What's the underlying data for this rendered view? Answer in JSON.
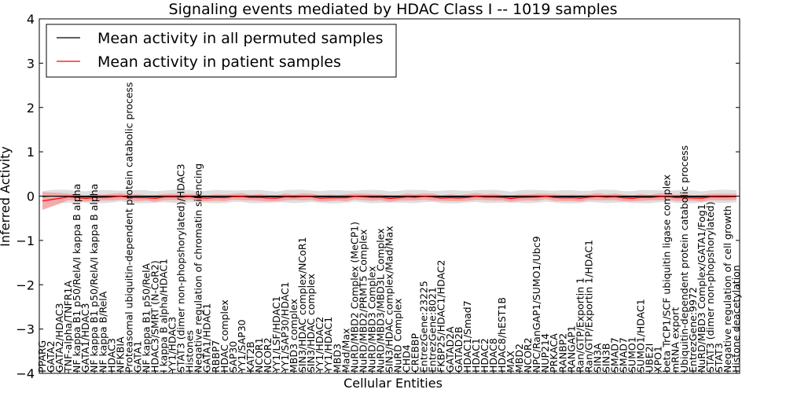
{
  "chart_data": {
    "type": "line",
    "title": "Signaling events mediated by HDAC Class I -- 1019 samples",
    "xlabel": "Cellular Entities",
    "ylabel": "Inferred Activity",
    "ylim": [
      -4,
      4
    ],
    "yticks": [
      "−4",
      "−3",
      "−2",
      "−1",
      "0",
      "1",
      "2",
      "3",
      "4"
    ],
    "legend_position": "upper-left",
    "series": [
      {
        "name": "Mean activity in all permuted samples",
        "color": "#000000",
        "level": -0.01
      },
      {
        "name": "Mean activity in patient samples",
        "color": "#ff0000",
        "level": -0.03
      }
    ],
    "band_colors": {
      "permuted": "#d9d9d9",
      "patient": "#f4a3a3"
    },
    "categories": [
      "PPARG",
      "GATA2",
      "GATA2/HDAC3",
      "TNF-alpha/TNFR1A",
      "NF kappa B1 p50/RelA/I kappa B alpha",
      "GATA1/HDAC3",
      "NF kappa B1 p50/RelA/I kappa B alpha",
      "NF kappa B/RelA",
      "HDAC3",
      "NFKBIA",
      "Proteasomal ubiquitin-dependent protein catabolic process",
      "GATA1",
      "NF kappa B1 p50/RelA",
      "HDAC3/SMRT (N-CoR2)",
      "I kappa B alpha/HDAC1",
      "YY1/HDAC3",
      "STAT3 (dimer non-phopshorylated)/HDAC3",
      "Histones",
      "Negative regulation of chromatin silencing",
      "GATA1/HDAC1",
      "RBBP7",
      "HDAC complex",
      "SAP30",
      "YY1/SAP30",
      "KAT2B",
      "NCOR1",
      "NCOR2",
      "YY1/LSF/HDAC1",
      "YY1/SAP30/HDAC1",
      "MBD3 complex",
      "SIN3/HDAC complex/NCoR1",
      "SIN3/HDAC complex",
      "YY1/HDAC2",
      "YY1/HDAC1",
      "MBD3",
      "Mad/Max",
      "NuRD/MBD2 Complex (MeCP1)",
      "NuRD/MBD2/PRMT5 Complex",
      "NuRD/MBD3 Complex",
      "NuRD/MBD3/MBD3L Complex",
      "SIN3/HDAC complex/Mad/Max",
      "NuRD Complex",
      "CHD4",
      "CREBBP",
      "EntrezGene:23225",
      "EntrezGene:8021",
      "FKBP25/HDAC1/HDAC2",
      "GATAD2A",
      "GATAD2B",
      "HDAC1/Smad7",
      "HDAC1",
      "HDAC2",
      "HDAC8",
      "HDAC8/hEST1B",
      "MAX",
      "MBD2",
      "NCOR2",
      "NPC/RanGAP1/SUMO1/Ubc9",
      "NUP214",
      "PRKACA",
      "RANBP2",
      "RANGAP1",
      "Ran/GTP/Exportin 1",
      "Ran/GTP/Exportin 1/HDAC1",
      "SIN3A",
      "SIN3B",
      "SMAD7",
      "SMAD7",
      "SUMO1",
      "SUMO1/HDAC1",
      "UBE2I",
      "XPO1",
      "beta TrCP1/SCF ubiquitin ligase complex",
      "mRNA export",
      "Ubiquitin-dependent protein catabolic process",
      "EntrezGene:9972",
      "NuRD/MBD3 Complex/GATA1/Fog1",
      "STAT3 (dimer non-phopshorylated)",
      "STAT3",
      "Negative regulation of cell growth",
      "Histone deacetylation"
    ]
  }
}
